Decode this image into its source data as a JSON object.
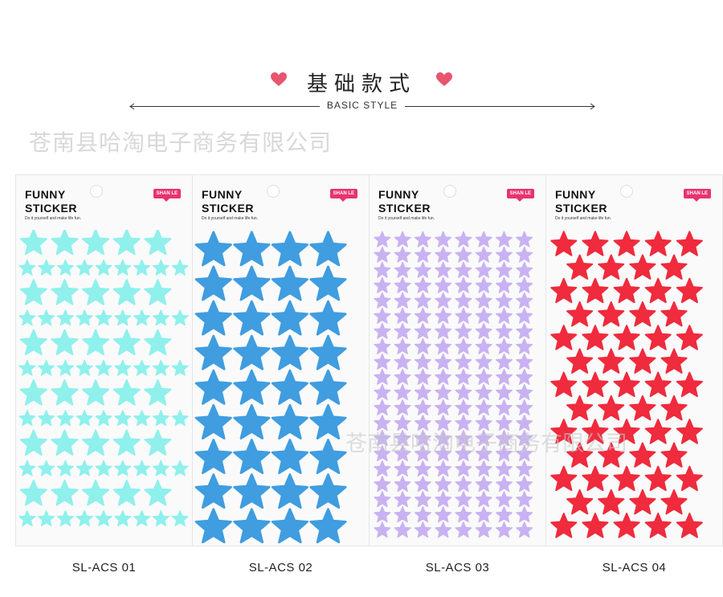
{
  "header": {
    "title": "基础款式",
    "subtitle": "BASIC STYLE"
  },
  "watermarks": [
    "苍南县哈淘电子商务有限公司",
    "苍南县哈淘电子商务有限公司"
  ],
  "colors": {
    "heart": "#e8556f",
    "badge": "#e8336e"
  },
  "products": [
    {
      "brand_line1": "FUNNY",
      "brand_line2": "STICKER",
      "tagline": "Do it yourself and make life fun.",
      "badge": "SHAN LE",
      "caption": "SL-ACS 01",
      "star_color": "#8ff0ec",
      "pattern": "alternating"
    },
    {
      "brand_line1": "FUNNY",
      "brand_line2": "STICKER",
      "tagline": "Do it yourself and make life fun.",
      "badge": "SHAN LE",
      "caption": "SL-ACS 02",
      "star_color": "#3f9de0",
      "pattern": "large"
    },
    {
      "brand_line1": "FUNNY",
      "brand_line2": "STICKER",
      "tagline": "Do it yourself and make life fun.",
      "badge": "SHAN LE",
      "caption": "SL-ACS 03",
      "star_color": "#c8b2f2",
      "pattern": "small"
    },
    {
      "brand_line1": "FUNNY",
      "brand_line2": "STICKER",
      "tagline": "Do it yourself and make life fun.",
      "badge": "SHAN LE",
      "caption": "SL-ACS 04",
      "star_color": "#ef2b3d",
      "pattern": "staggered"
    }
  ]
}
